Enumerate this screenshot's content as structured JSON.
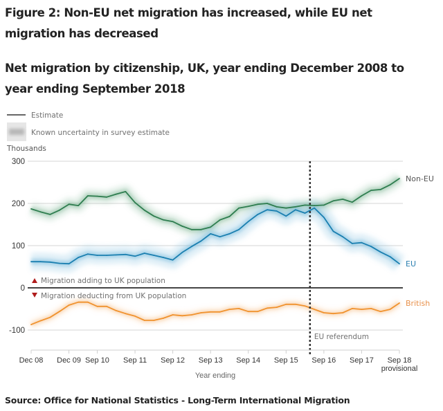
{
  "title": "Figure 2: Non-EU net migration has increased, while EU net migration has decreased",
  "subtitle": "Net migration by citizenship, UK, year ending December 2008 to year ending September 2018",
  "source": "Source: Office for National Statistics - Long-Term International Migration",
  "legend": {
    "estimate": "Estimate",
    "uncertainty": "Known uncertainty in survey estimate"
  },
  "annotations": {
    "adding": "Migration adding to UK population",
    "deducting": "Migration deducting from UK population",
    "referendum": "EU referendum",
    "referendum_quarter_index": 30
  },
  "colors": {
    "non_eu": "#2e7d4f",
    "eu": "#1a7fb0",
    "british": "#f0922e",
    "up_arrow": "#b01c1c",
    "down_arrow": "#b01c1c"
  },
  "chart_data": {
    "type": "line",
    "title": "Net migration by citizenship, UK, year ending December 2008 to year ending September 2018",
    "xlabel": "Year ending",
    "ylabel": "Thousands",
    "ylim": [
      -150,
      300
    ],
    "yticks": [
      300,
      200,
      100,
      0,
      -100
    ],
    "grid": true,
    "legend_position": "top-left",
    "x_tick_labels": [
      {
        "index": 0,
        "label": "Dec 08"
      },
      {
        "index": 4,
        "label": "Dec 09"
      },
      {
        "index": 7,
        "label": "Sep 10"
      },
      {
        "index": 11,
        "label": "Sep 11"
      },
      {
        "index": 15,
        "label": "Sep 12"
      },
      {
        "index": 19,
        "label": "Sep 13"
      },
      {
        "index": 23,
        "label": "Sep 14"
      },
      {
        "index": 27,
        "label": "Sep 15"
      },
      {
        "index": 31,
        "label": "Sep 16"
      },
      {
        "index": 35,
        "label": "Sep 17"
      },
      {
        "index": 39,
        "label": "Sep 18",
        "sublabel": "provisional"
      }
    ],
    "x": [
      "Dec 08",
      "Mar 09",
      "Jun 09",
      "Sep 09",
      "Dec 09",
      "Mar 10",
      "Jun 10",
      "Sep 10",
      "Dec 10",
      "Mar 11",
      "Jun 11",
      "Sep 11",
      "Dec 11",
      "Mar 12",
      "Jun 12",
      "Sep 12",
      "Dec 12",
      "Mar 13",
      "Jun 13",
      "Sep 13",
      "Dec 13",
      "Mar 14",
      "Jun 14",
      "Sep 14",
      "Dec 14",
      "Mar 15",
      "Jun 15",
      "Sep 15",
      "Dec 15",
      "Mar 16",
      "Jun 16",
      "Sep 16",
      "Dec 16",
      "Mar 17",
      "Jun 17",
      "Sep 17",
      "Dec 17",
      "Mar 18",
      "Jun 18",
      "Sep 18"
    ],
    "series": [
      {
        "name": "Non-EU",
        "values": [
          187,
          180,
          174,
          184,
          198,
          195,
          218,
          217,
          215,
          222,
          228,
          202,
          184,
          170,
          161,
          157,
          146,
          138,
          138,
          144,
          161,
          169,
          189,
          193,
          198,
          200,
          192,
          189,
          192,
          196,
          195,
          196,
          206,
          210,
          203,
          218,
          231,
          233,
          244,
          259
        ]
      },
      {
        "name": "EU",
        "values": [
          62,
          62,
          61,
          58,
          57,
          72,
          80,
          77,
          77,
          78,
          79,
          75,
          82,
          77,
          72,
          66,
          84,
          98,
          111,
          128,
          121,
          128,
          138,
          157,
          174,
          185,
          182,
          170,
          185,
          177,
          189,
          167,
          134,
          121,
          105,
          107,
          98,
          85,
          74,
          57
        ]
      },
      {
        "name": "British",
        "values": [
          -87,
          -78,
          -70,
          -56,
          -41,
          -34,
          -34,
          -44,
          -44,
          -54,
          -61,
          -67,
          -77,
          -77,
          -72,
          -64,
          -66,
          -64,
          -59,
          -57,
          -57,
          -51,
          -49,
          -56,
          -56,
          -48,
          -46,
          -39,
          -39,
          -43,
          -51,
          -59,
          -61,
          -59,
          -49,
          -51,
          -49,
          -56,
          -51,
          -36
        ]
      }
    ]
  }
}
